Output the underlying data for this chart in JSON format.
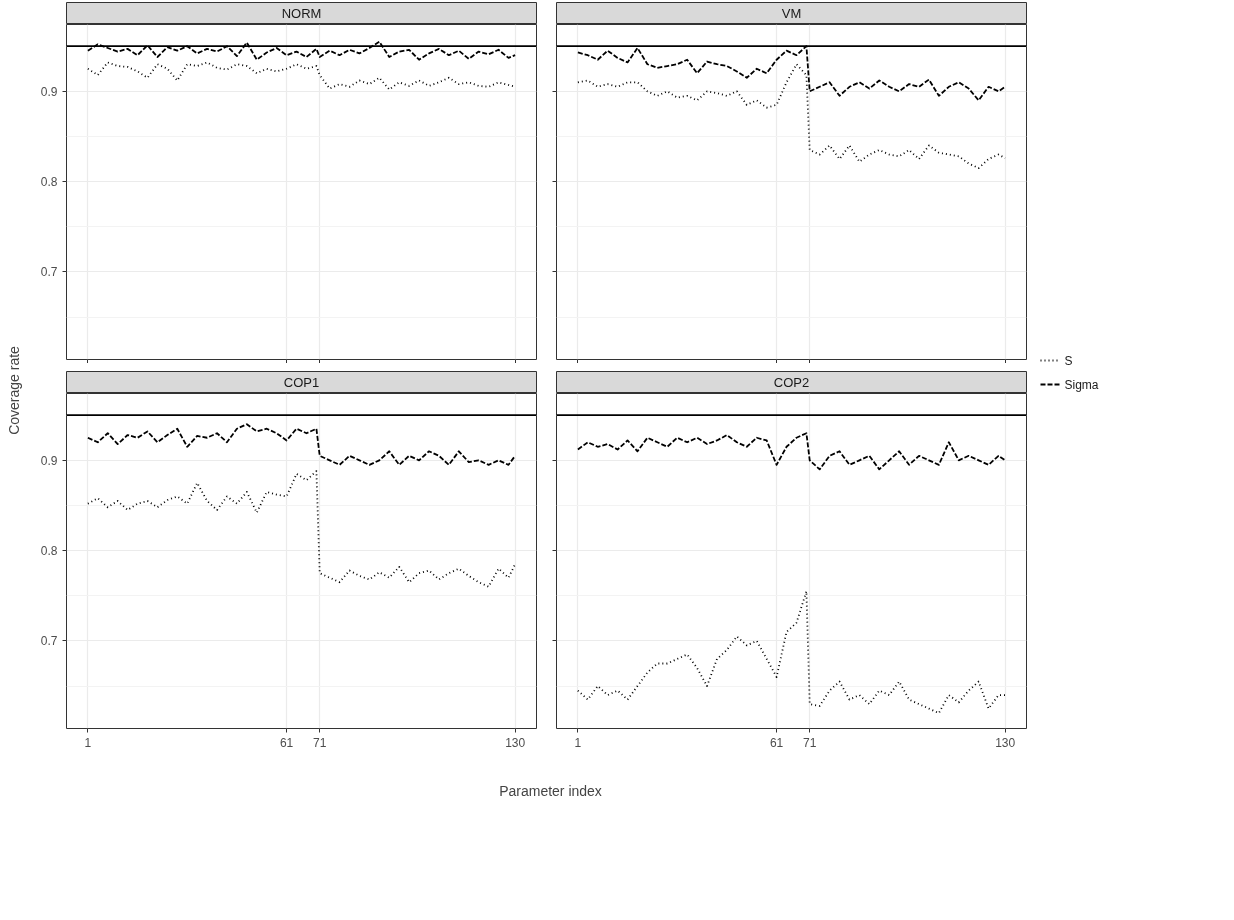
{
  "chart_data": [
    {
      "type": "line",
      "title": "NORM",
      "xlabel": "Parameter index",
      "ylabel": "Coverage rate",
      "legend": "right",
      "grid": true,
      "tick_labels": "y",
      "x": [
        1,
        4,
        7,
        10,
        13,
        16,
        19,
        22,
        25,
        28,
        31,
        34,
        37,
        40,
        43,
        46,
        49,
        52,
        55,
        58,
        61,
        64,
        67,
        70,
        71,
        74,
        77,
        80,
        83,
        86,
        89,
        92,
        95,
        98,
        101,
        104,
        107,
        110,
        113,
        116,
        119,
        122,
        125,
        128,
        130
      ],
      "xlim": [
        -5.45,
        136.45
      ],
      "xticks": [
        1,
        61,
        71,
        130
      ],
      "ylim": [
        0.603,
        0.974
      ],
      "yticks": [
        {
          "value": 0.65,
          "label": null
        },
        0.7,
        {
          "value": 0.75,
          "label": null
        },
        0.8,
        {
          "value": 0.85,
          "label": null
        },
        0.9,
        {
          "value": 0.95,
          "label": null
        }
      ],
      "ref_lines": [
        {
          "axis": "y",
          "value": 0.95,
          "color": "#000000",
          "line_style": "solid"
        }
      ],
      "series": [
        {
          "name": "S",
          "color": "#000000",
          "line_style": "dotted",
          "values": [
            0.925,
            0.918,
            0.932,
            0.928,
            0.927,
            0.922,
            0.915,
            0.93,
            0.925,
            0.912,
            0.93,
            0.928,
            0.932,
            0.926,
            0.924,
            0.93,
            0.928,
            0.92,
            0.925,
            0.922,
            0.925,
            0.93,
            0.925,
            0.928,
            0.918,
            0.903,
            0.908,
            0.905,
            0.912,
            0.908,
            0.915,
            0.902,
            0.91,
            0.906,
            0.912,
            0.906,
            0.91,
            0.915,
            0.908,
            0.91,
            0.906,
            0.905,
            0.91,
            0.907,
            0.905
          ]
        },
        {
          "name": "Sigma",
          "color": "#000000",
          "line_style": "dashed",
          "values": [
            0.945,
            0.952,
            0.948,
            0.944,
            0.947,
            0.94,
            0.951,
            0.938,
            0.949,
            0.945,
            0.95,
            0.942,
            0.947,
            0.944,
            0.95,
            0.939,
            0.954,
            0.935,
            0.943,
            0.948,
            0.94,
            0.944,
            0.938,
            0.947,
            0.938,
            0.945,
            0.94,
            0.946,
            0.942,
            0.948,
            0.955,
            0.938,
            0.944,
            0.946,
            0.935,
            0.942,
            0.947,
            0.94,
            0.945,
            0.936,
            0.944,
            0.941,
            0.946,
            0.937,
            0.94
          ]
        }
      ]
    },
    {
      "type": "line",
      "title": "VM",
      "grid": true,
      "tick_labels": false,
      "x": [
        1,
        4,
        7,
        10,
        13,
        16,
        19,
        22,
        25,
        28,
        31,
        34,
        37,
        40,
        43,
        46,
        49,
        52,
        55,
        58,
        61,
        64,
        67,
        70,
        71,
        74,
        77,
        80,
        83,
        86,
        89,
        92,
        95,
        98,
        101,
        104,
        107,
        110,
        113,
        116,
        119,
        122,
        125,
        128,
        130
      ],
      "xlim": [
        -5.45,
        136.45
      ],
      "xticks": [
        1,
        61,
        71,
        130
      ],
      "ylim": [
        0.603,
        0.974
      ],
      "yticks": [
        {
          "value": 0.65,
          "label": null
        },
        0.7,
        {
          "value": 0.75,
          "label": null
        },
        0.8,
        {
          "value": 0.85,
          "label": null
        },
        0.9,
        {
          "value": 0.95,
          "label": null
        }
      ],
      "ref_lines": [
        {
          "axis": "y",
          "value": 0.95,
          "color": "#000000",
          "line_style": "solid"
        }
      ],
      "series": [
        {
          "color": "#000000",
          "line_style": "dotted",
          "values": [
            0.91,
            0.912,
            0.905,
            0.908,
            0.905,
            0.91,
            0.91,
            0.9,
            0.895,
            0.9,
            0.893,
            0.895,
            0.89,
            0.9,
            0.898,
            0.895,
            0.9,
            0.885,
            0.89,
            0.882,
            0.885,
            0.91,
            0.93,
            0.918,
            0.835,
            0.83,
            0.84,
            0.825,
            0.84,
            0.822,
            0.83,
            0.835,
            0.83,
            0.828,
            0.835,
            0.825,
            0.84,
            0.832,
            0.83,
            0.828,
            0.82,
            0.815,
            0.825,
            0.83,
            0.826
          ]
        },
        {
          "color": "#000000",
          "line_style": "dashed",
          "values": [
            0.943,
            0.94,
            0.935,
            0.945,
            0.937,
            0.932,
            0.948,
            0.93,
            0.926,
            0.928,
            0.93,
            0.935,
            0.92,
            0.933,
            0.93,
            0.928,
            0.922,
            0.915,
            0.925,
            0.92,
            0.935,
            0.945,
            0.94,
            0.95,
            0.9,
            0.905,
            0.91,
            0.895,
            0.905,
            0.91,
            0.903,
            0.912,
            0.905,
            0.9,
            0.908,
            0.905,
            0.913,
            0.895,
            0.905,
            0.91,
            0.903,
            0.89,
            0.905,
            0.9,
            0.905
          ]
        }
      ]
    },
    {
      "type": "line",
      "title": "COP1",
      "grid": true,
      "x": [
        1,
        4,
        7,
        10,
        13,
        16,
        19,
        22,
        25,
        28,
        31,
        34,
        37,
        40,
        43,
        46,
        49,
        52,
        55,
        58,
        61,
        64,
        67,
        70,
        71,
        74,
        77,
        80,
        83,
        86,
        89,
        92,
        95,
        98,
        101,
        104,
        107,
        110,
        113,
        116,
        119,
        122,
        125,
        128,
        130
      ],
      "xlim": [
        -5.45,
        136.45
      ],
      "xticks": [
        1,
        61,
        71,
        130
      ],
      "ylim": [
        0.603,
        0.974
      ],
      "yticks": [
        {
          "value": 0.65,
          "label": null
        },
        0.7,
        {
          "value": 0.75,
          "label": null
        },
        0.8,
        {
          "value": 0.85,
          "label": null
        },
        0.9,
        {
          "value": 0.95,
          "label": null
        }
      ],
      "ref_lines": [
        {
          "axis": "y",
          "value": 0.95,
          "color": "#000000",
          "line_style": "solid"
        }
      ],
      "series": [
        {
          "color": "#000000",
          "line_style": "dotted",
          "values": [
            0.852,
            0.858,
            0.848,
            0.855,
            0.845,
            0.852,
            0.855,
            0.848,
            0.856,
            0.86,
            0.852,
            0.875,
            0.855,
            0.845,
            0.86,
            0.852,
            0.865,
            0.842,
            0.865,
            0.862,
            0.86,
            0.885,
            0.878,
            0.888,
            0.775,
            0.77,
            0.765,
            0.778,
            0.772,
            0.768,
            0.776,
            0.77,
            0.782,
            0.765,
            0.775,
            0.778,
            0.768,
            0.775,
            0.78,
            0.772,
            0.765,
            0.76,
            0.78,
            0.77,
            0.785
          ]
        },
        {
          "color": "#000000",
          "line_style": "dashed",
          "values": [
            0.925,
            0.92,
            0.93,
            0.918,
            0.928,
            0.925,
            0.932,
            0.92,
            0.928,
            0.935,
            0.915,
            0.927,
            0.925,
            0.93,
            0.92,
            0.935,
            0.94,
            0.932,
            0.935,
            0.93,
            0.922,
            0.935,
            0.93,
            0.935,
            0.905,
            0.9,
            0.895,
            0.905,
            0.9,
            0.895,
            0.9,
            0.91,
            0.895,
            0.905,
            0.9,
            0.91,
            0.905,
            0.895,
            0.91,
            0.898,
            0.9,
            0.895,
            0.9,
            0.895,
            0.905
          ]
        }
      ]
    },
    {
      "type": "line",
      "title": "COP2",
      "grid": true,
      "tick_labels": "x",
      "x": [
        1,
        4,
        7,
        10,
        13,
        16,
        19,
        22,
        25,
        28,
        31,
        34,
        37,
        40,
        43,
        46,
        49,
        52,
        55,
        58,
        61,
        64,
        67,
        70,
        71,
        74,
        77,
        80,
        83,
        86,
        89,
        92,
        95,
        98,
        101,
        104,
        107,
        110,
        113,
        116,
        119,
        122,
        125,
        128,
        130
      ],
      "xlim": [
        -5.45,
        136.45
      ],
      "xticks": [
        1,
        61,
        71,
        130
      ],
      "ylim": [
        0.603,
        0.974
      ],
      "yticks": [
        {
          "value": 0.65,
          "label": null
        },
        0.7,
        {
          "value": 0.75,
          "label": null
        },
        0.8,
        {
          "value": 0.85,
          "label": null
        },
        0.9,
        {
          "value": 0.95,
          "label": null
        }
      ],
      "ref_lines": [
        {
          "axis": "y",
          "value": 0.95,
          "color": "#000000",
          "line_style": "solid"
        }
      ],
      "series": [
        {
          "color": "#000000",
          "line_style": "dotted",
          "values": [
            0.645,
            0.635,
            0.65,
            0.64,
            0.645,
            0.635,
            0.65,
            0.665,
            0.675,
            0.675,
            0.68,
            0.685,
            0.67,
            0.65,
            0.68,
            0.69,
            0.705,
            0.695,
            0.7,
            0.68,
            0.66,
            0.71,
            0.72,
            0.755,
            0.63,
            0.628,
            0.645,
            0.655,
            0.635,
            0.64,
            0.63,
            0.645,
            0.64,
            0.655,
            0.635,
            0.63,
            0.625,
            0.62,
            0.64,
            0.632,
            0.645,
            0.655,
            0.625,
            0.64,
            0.64
          ]
        },
        {
          "color": "#000000",
          "line_style": "dashed",
          "values": [
            0.912,
            0.92,
            0.915,
            0.918,
            0.912,
            0.922,
            0.91,
            0.925,
            0.92,
            0.915,
            0.925,
            0.92,
            0.925,
            0.918,
            0.922,
            0.928,
            0.92,
            0.915,
            0.925,
            0.922,
            0.895,
            0.915,
            0.925,
            0.93,
            0.9,
            0.89,
            0.905,
            0.91,
            0.895,
            0.9,
            0.905,
            0.89,
            0.9,
            0.91,
            0.895,
            0.905,
            0.9,
            0.895,
            0.92,
            0.9,
            0.905,
            0.9,
            0.895,
            0.905,
            0.9
          ]
        }
      ]
    }
  ]
}
